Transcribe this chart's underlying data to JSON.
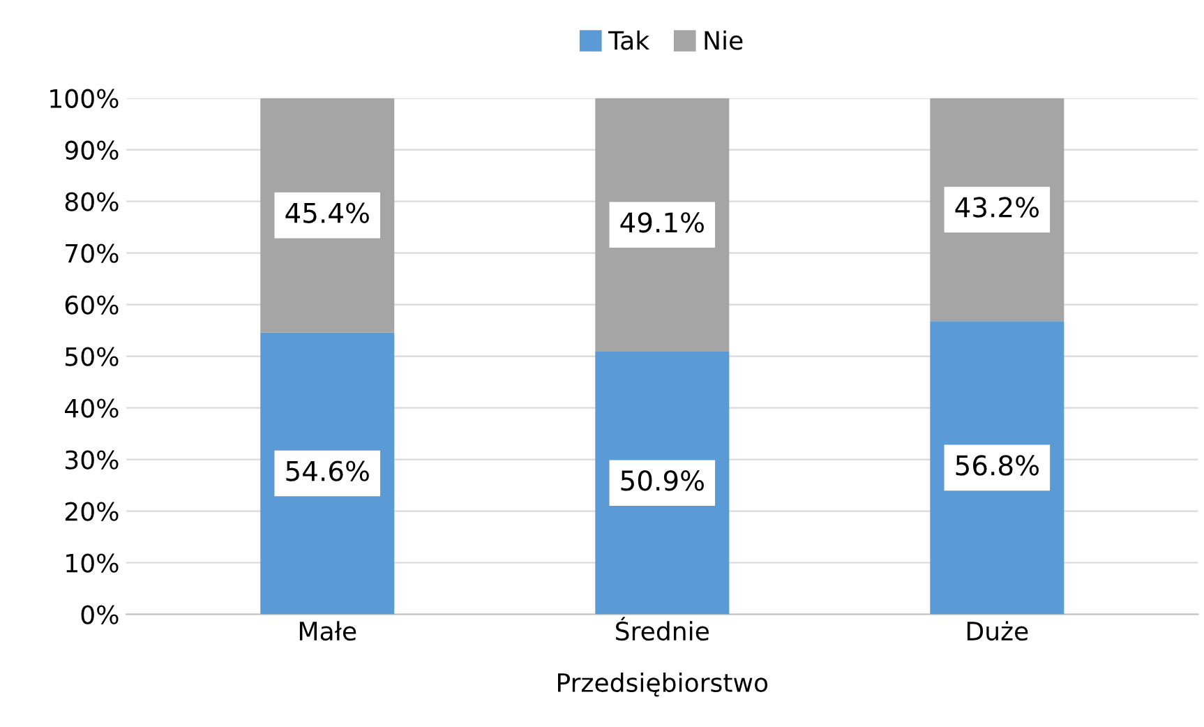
{
  "chart_data": {
    "type": "bar",
    "stacked": true,
    "xlabel": "Przedsiębiorstwo",
    "categories": [
      "Małe",
      "Średnie",
      "Duże"
    ],
    "series": [
      {
        "name": "Tak",
        "color": "#5b9bd5",
        "values": [
          54.6,
          50.9,
          56.8
        ],
        "value_labels": [
          "54.6%",
          "50.9%",
          "56.8%"
        ]
      },
      {
        "name": "Nie",
        "color": "#a5a5a5",
        "values": [
          45.4,
          49.1,
          43.2
        ],
        "value_labels": [
          "45.4%",
          "49.1%",
          "43.2%"
        ]
      }
    ],
    "ylim": [
      0,
      100
    ],
    "yticks": [
      {
        "value": 0,
        "label": "0%"
      },
      {
        "value": 10,
        "label": "10%"
      },
      {
        "value": 20,
        "label": "20%"
      },
      {
        "value": 30,
        "label": "30%"
      },
      {
        "value": 40,
        "label": "40%"
      },
      {
        "value": 50,
        "label": "50%"
      },
      {
        "value": 60,
        "label": "60%"
      },
      {
        "value": 70,
        "label": "70%"
      },
      {
        "value": 80,
        "label": "80%"
      },
      {
        "value": 90,
        "label": "90%"
      },
      {
        "value": 100,
        "label": "100%"
      }
    ],
    "grid": "y",
    "legend": "top"
  }
}
